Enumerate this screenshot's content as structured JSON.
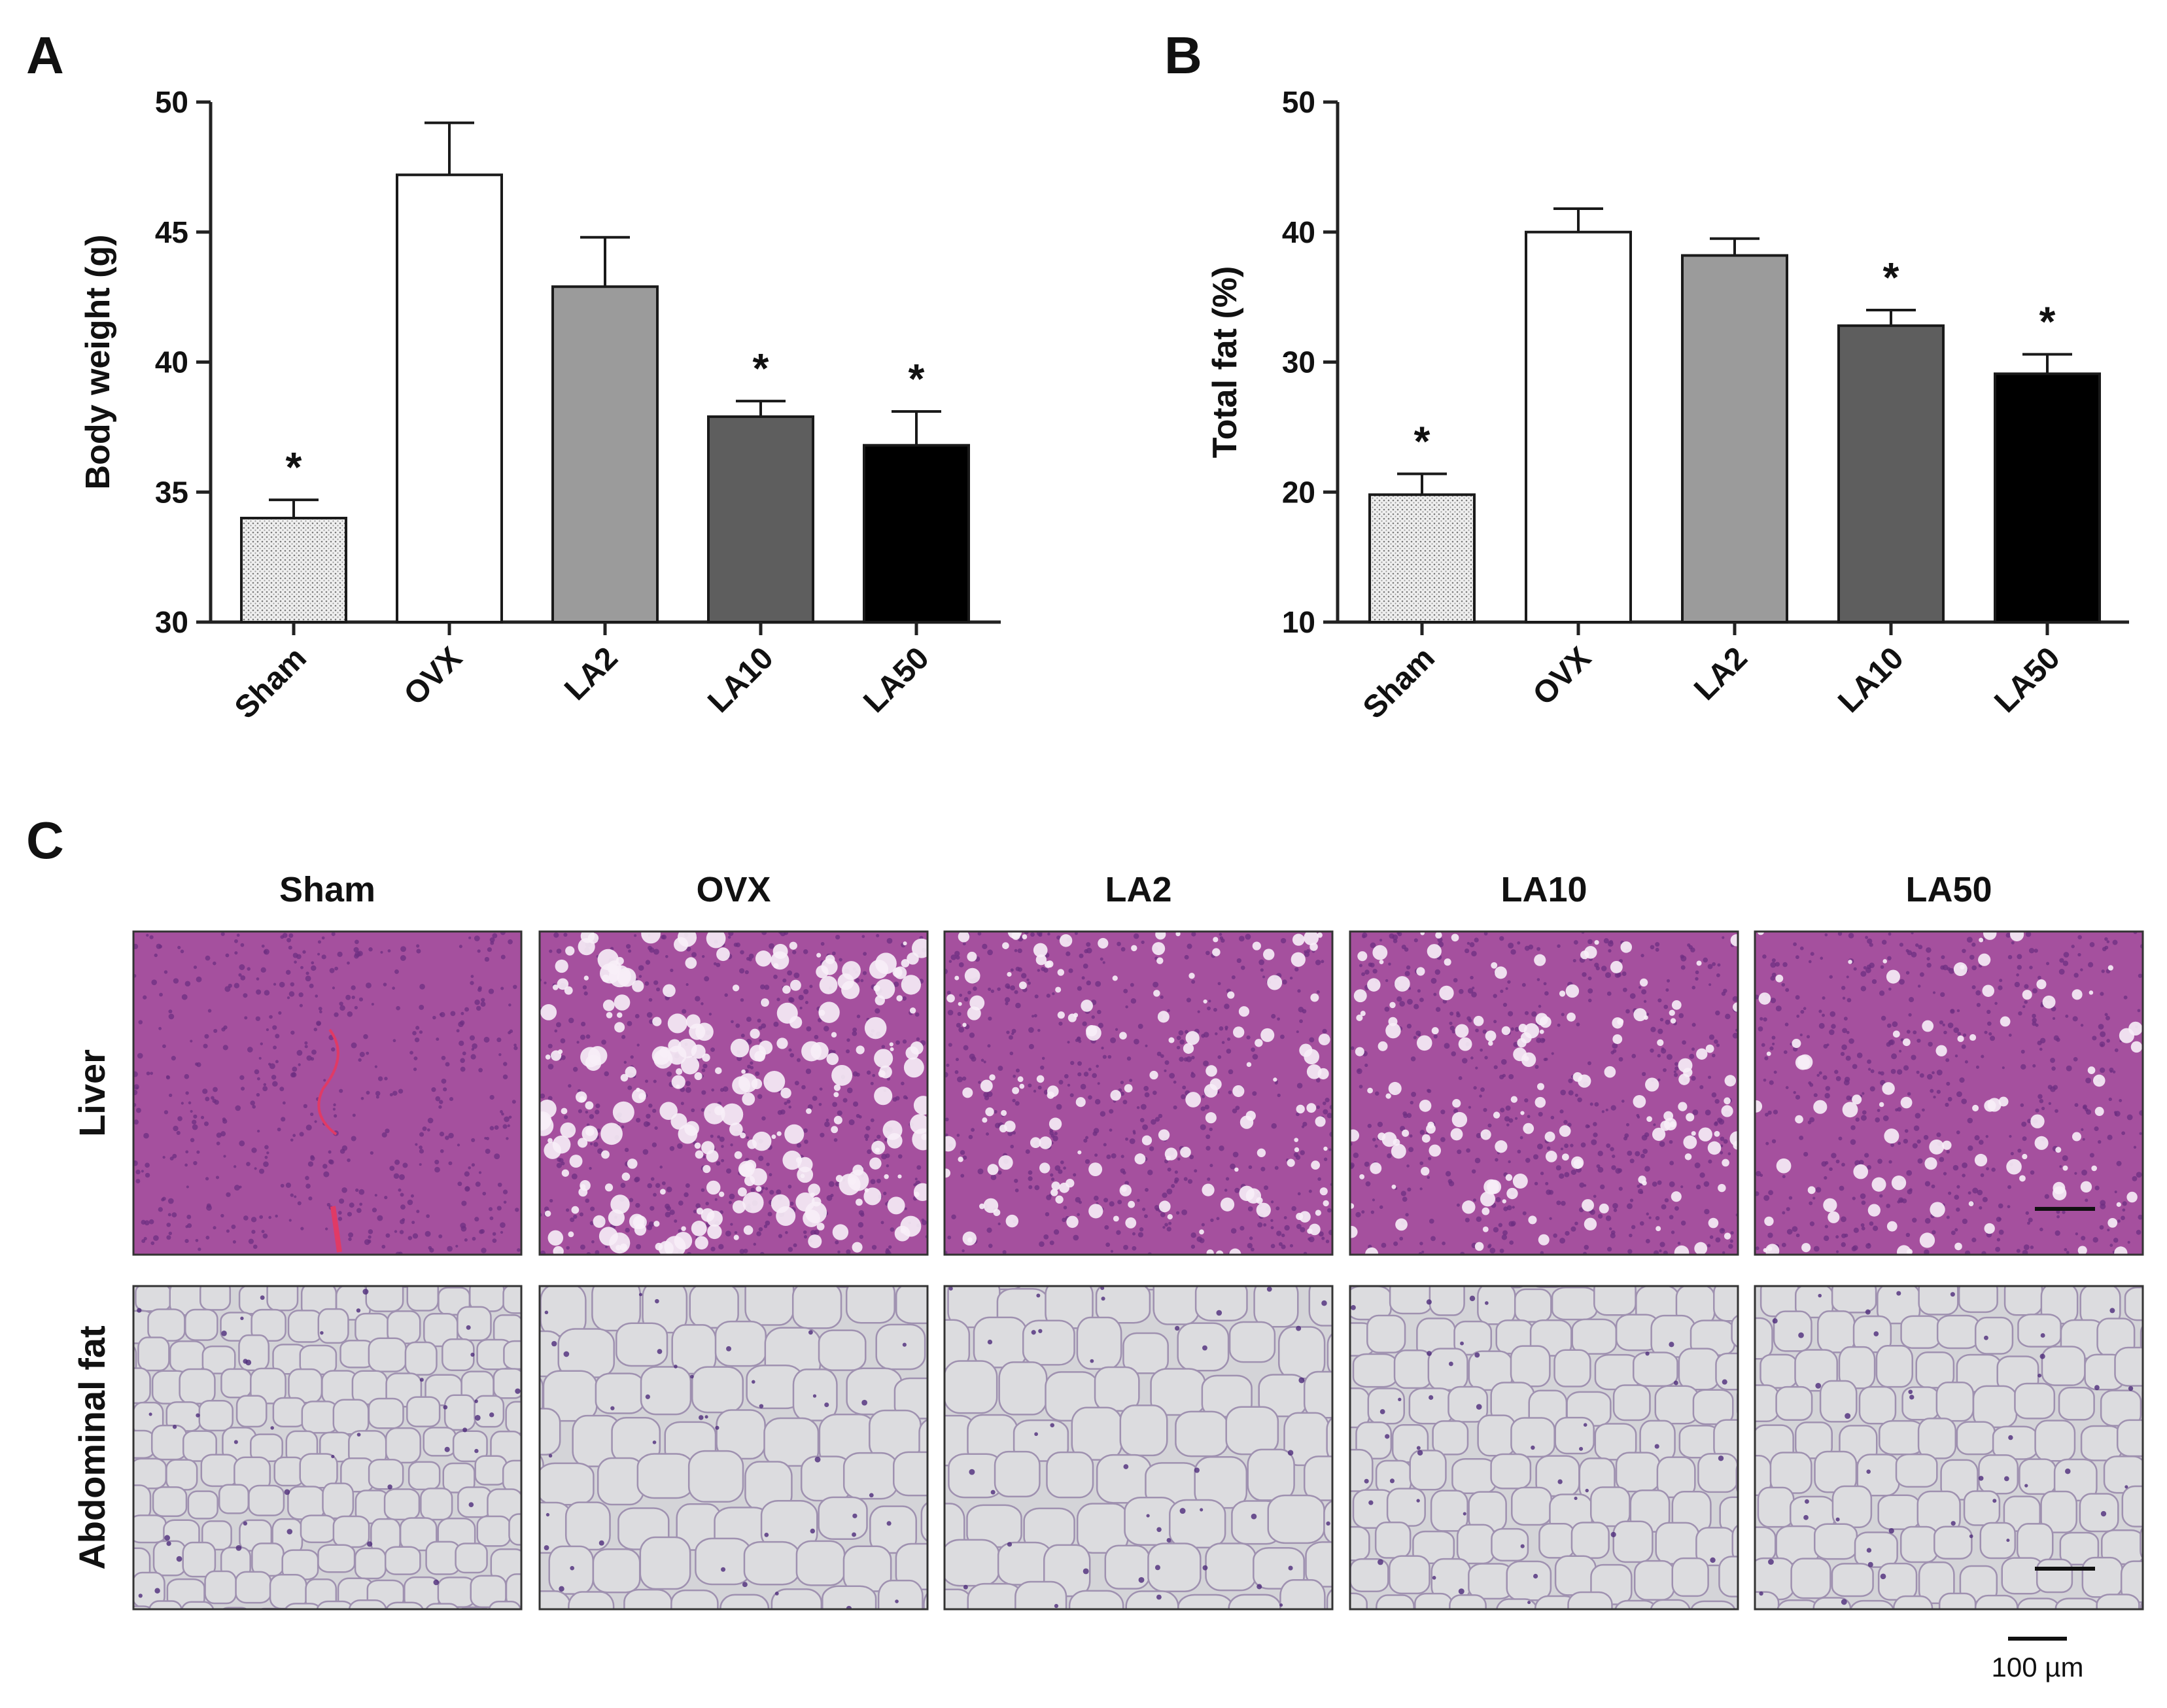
{
  "panels": {
    "a": "A",
    "b": "B",
    "c": "C"
  },
  "chart_data": [
    {
      "type": "bar",
      "panel": "A",
      "ylabel": "Body weight (g)",
      "ylim": [
        30,
        50
      ],
      "yticks": [
        30,
        35,
        40,
        45,
        50
      ],
      "categories": [
        "Sham",
        "OVX",
        "LA2",
        "LA10",
        "LA50"
      ],
      "values": [
        34.0,
        47.2,
        42.9,
        37.9,
        36.8
      ],
      "errors": [
        0.7,
        2.0,
        1.9,
        0.6,
        1.3
      ],
      "significance": [
        "*",
        "",
        "",
        "*",
        "*"
      ],
      "colors": [
        "#e6e6e6",
        "#ffffff",
        "#9b9b9b",
        "#5e5e5e",
        "#000000"
      ],
      "sham_pattern": "dotted"
    },
    {
      "type": "bar",
      "panel": "B",
      "ylabel": "Total fat (%)",
      "ylim": [
        10,
        50
      ],
      "yticks": [
        10,
        20,
        30,
        40,
        50
      ],
      "categories": [
        "Sham",
        "OVX",
        "LA2",
        "LA10",
        "LA50"
      ],
      "values": [
        19.8,
        40.0,
        38.2,
        32.8,
        29.1
      ],
      "errors": [
        1.6,
        1.8,
        1.3,
        1.2,
        1.5
      ],
      "significance": [
        "*",
        "",
        "",
        "*",
        "*"
      ],
      "colors": [
        "#e6e6e6",
        "#ffffff",
        "#9b9b9b",
        "#5e5e5e",
        "#000000"
      ],
      "sham_pattern": "dotted"
    }
  ],
  "histology": {
    "columns": [
      "Sham",
      "OVX",
      "LA2",
      "LA10",
      "LA50"
    ],
    "rows": [
      "Liver",
      "Abdominal fat"
    ],
    "liver_colors": {
      "base": "#a5509e",
      "dark": "#6d2f82",
      "vacuole": "#f7eef7",
      "blood": "#e03a66"
    },
    "fat_colors": {
      "base": "#d4d4d8",
      "membrane": "#9f91b0",
      "nucleus": "#4d2c7a"
    },
    "liver_vacuole_density": [
      "none",
      "high",
      "medium",
      "medium",
      "low"
    ],
    "scale_bar_label": "100 µm"
  }
}
